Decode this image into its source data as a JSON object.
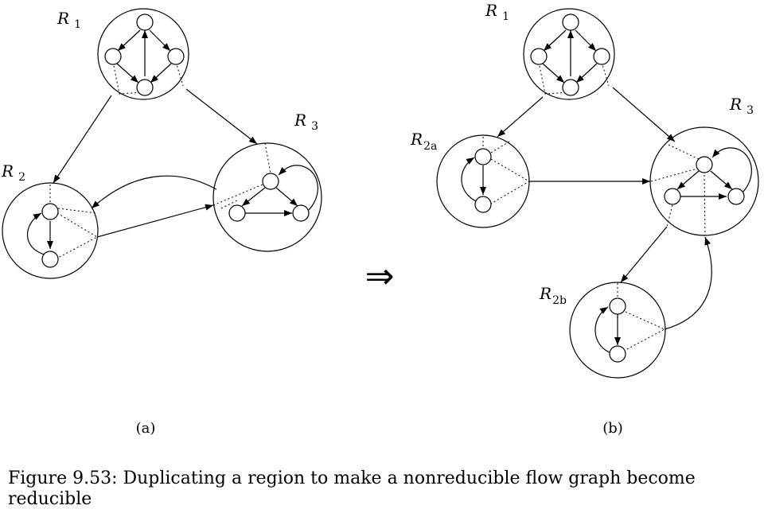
{
  "figure": {
    "panel_a": {
      "label": "(a)",
      "regions": [
        {
          "id": "R1",
          "label": "R",
          "subscript": "1"
        },
        {
          "id": "R2",
          "label": "R",
          "subscript": "2"
        },
        {
          "id": "R3",
          "label": "R",
          "subscript": "3"
        }
      ]
    },
    "panel_b": {
      "label": "(b)",
      "regions": [
        {
          "id": "R1",
          "label": "R",
          "subscript": "1"
        },
        {
          "id": "R2a",
          "label": "R",
          "subscript": "2a"
        },
        {
          "id": "R2b",
          "label": "R",
          "subscript": "2b"
        },
        {
          "id": "R3",
          "label": "R",
          "subscript": "3"
        }
      ]
    },
    "transform_symbol": "⇒",
    "caption_line1": "Figure 9.53: Duplicating a region to make a nonreducible flow graph become",
    "caption_line2": "reducible"
  }
}
